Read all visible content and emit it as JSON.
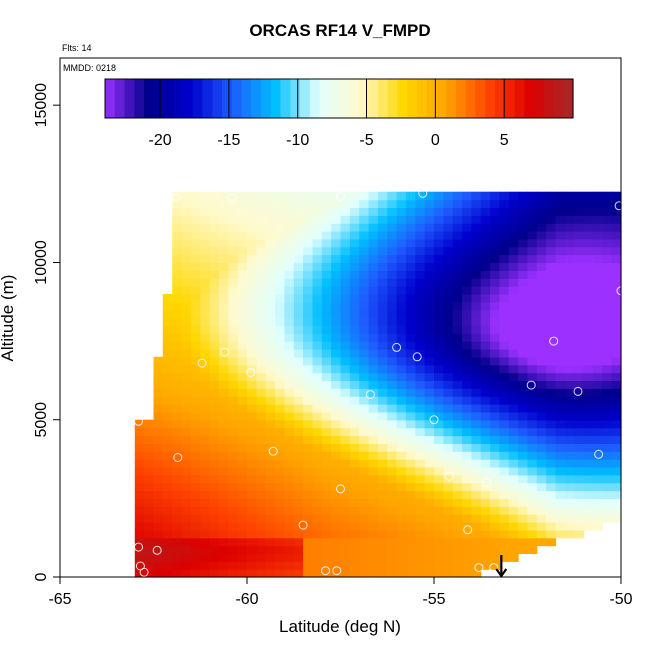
{
  "chart_data": {
    "type": "heatmap",
    "title": "ORCAS RF14 V_FMPD",
    "subtitle_flts": "Flts: 14",
    "subtitle_mmdd": "MMDD: 0218",
    "xlabel": "Latitude (deg N)",
    "ylabel": "Altitude (m)",
    "xlim": [
      -65,
      -50
    ],
    "ylim": [
      0,
      16500
    ],
    "x_ticks": [
      -65,
      -60,
      -55,
      -50
    ],
    "x_tick_labels": [
      "-65",
      "-60",
      "-55",
      "-50"
    ],
    "y_ticks": [
      0,
      5000,
      10000,
      15000
    ],
    "y_tick_labels": [
      "0",
      "5000",
      "10000",
      "15000"
    ],
    "colorbar": {
      "min": -24,
      "max": 10,
      "ticks": [
        -20,
        -15,
        -10,
        -5,
        0,
        5
      ],
      "tick_labels": [
        "-20",
        "-15",
        "-10",
        "-5",
        "0",
        "5"
      ],
      "colors": [
        "#9b30ff",
        "#00008b",
        "#0000cd",
        "#1e5cff",
        "#00bfff",
        "#e0ffff",
        "#fffacd",
        "#ffd700",
        "#ffa500",
        "#ff4500",
        "#dd0000",
        "#a52a2a"
      ]
    },
    "field_description_points": {
      "min_value_location": {
        "lat": -51.7,
        "alt": 7800,
        "value": -23
      },
      "max_value_location": {
        "lat": -62.8,
        "alt": 800,
        "value": 8
      }
    },
    "observations": [
      {
        "lat": -62.9,
        "alt": 4950
      },
      {
        "lat": -62.9,
        "alt": 950
      },
      {
        "lat": -62.85,
        "alt": 350
      },
      {
        "lat": -62.75,
        "alt": 150
      },
      {
        "lat": -62.4,
        "alt": 850
      },
      {
        "lat": -62.5,
        "alt": 8850
      },
      {
        "lat": -61.9,
        "alt": 12050
      },
      {
        "lat": -61.85,
        "alt": 3800
      },
      {
        "lat": -61.2,
        "alt": 6800
      },
      {
        "lat": -60.6,
        "alt": 7150
      },
      {
        "lat": -60.4,
        "alt": 12050
      },
      {
        "lat": -59.9,
        "alt": 6500
      },
      {
        "lat": -59.3,
        "alt": 4000
      },
      {
        "lat": -58.5,
        "alt": 1650
      },
      {
        "lat": -57.9,
        "alt": 200
      },
      {
        "lat": -57.6,
        "alt": 200
      },
      {
        "lat": -57.5,
        "alt": 2800
      },
      {
        "lat": -57.5,
        "alt": 12100
      },
      {
        "lat": -56.7,
        "alt": 5800
      },
      {
        "lat": -56.0,
        "alt": 7300
      },
      {
        "lat": -55.45,
        "alt": 7000
      },
      {
        "lat": -55.3,
        "alt": 12200
      },
      {
        "lat": -55.0,
        "alt": 5000
      },
      {
        "lat": -54.6,
        "alt": 3200
      },
      {
        "lat": -54.1,
        "alt": 1500
      },
      {
        "lat": -53.8,
        "alt": 300
      },
      {
        "lat": -53.6,
        "alt": 3000
      },
      {
        "lat": -53.4,
        "alt": 300
      },
      {
        "lat": -52.4,
        "alt": 6100
      },
      {
        "lat": -51.8,
        "alt": 7500
      },
      {
        "lat": -51.15,
        "alt": 5900
      },
      {
        "lat": -50.6,
        "alt": 3900
      },
      {
        "lat": -50.1,
        "alt": 12500
      },
      {
        "lat": -50.05,
        "alt": 11800
      },
      {
        "lat": -50.0,
        "alt": 9100
      },
      {
        "lat": -50.0,
        "alt": 2200
      }
    ],
    "arrow_marker": {
      "lat": -53.2,
      "alt_from": 700,
      "alt_to": 0
    }
  }
}
